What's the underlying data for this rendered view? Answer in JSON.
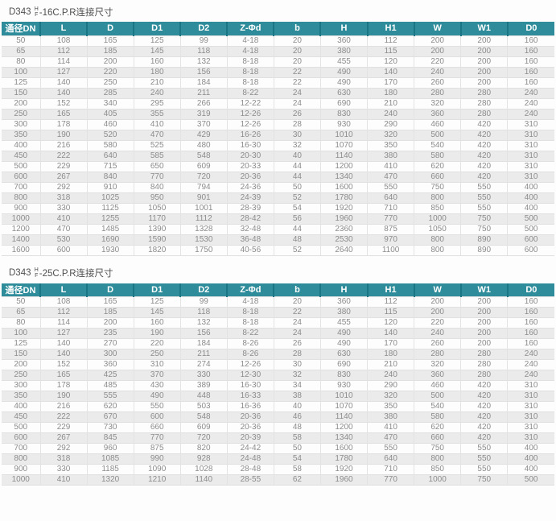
{
  "theme": {
    "header_bg": "#2e8c9b",
    "header_divider": "#1a7585",
    "header_text": "#ffffff",
    "row_alt_bg": "#ebebeb",
    "body_text": "#8c8c8c",
    "title_text": "#4f4f4f"
  },
  "tables": [
    {
      "title": {
        "prefix": "D343 ",
        "frac_top": "H",
        "frac_bottom": "F",
        "suffix": "-16C.P.R连接尺寸"
      },
      "columns": [
        "通径DN",
        "L",
        "D",
        "D1",
        "D2",
        "Z-Φd",
        "b",
        "H",
        "H1",
        "W",
        "W1",
        "D0"
      ],
      "rows": [
        [
          50,
          108,
          165,
          125,
          99,
          "4-18",
          20,
          360,
          112,
          200,
          200,
          160
        ],
        [
          65,
          112,
          185,
          145,
          118,
          "4-18",
          20,
          380,
          115,
          200,
          200,
          160
        ],
        [
          80,
          114,
          200,
          160,
          132,
          "8-18",
          20,
          455,
          120,
          220,
          200,
          160
        ],
        [
          100,
          127,
          220,
          180,
          156,
          "8-18",
          22,
          490,
          140,
          240,
          200,
          160
        ],
        [
          125,
          140,
          250,
          210,
          184,
          "8-18",
          22,
          490,
          170,
          260,
          200,
          160
        ],
        [
          150,
          140,
          285,
          240,
          211,
          "8-22",
          24,
          630,
          180,
          280,
          280,
          240
        ],
        [
          200,
          152,
          340,
          295,
          266,
          "12-22",
          24,
          690,
          210,
          320,
          280,
          240
        ],
        [
          250,
          165,
          405,
          355,
          319,
          "12-26",
          26,
          830,
          240,
          360,
          280,
          240
        ],
        [
          300,
          178,
          460,
          410,
          370,
          "12-26",
          28,
          930,
          290,
          460,
          420,
          310
        ],
        [
          350,
          190,
          520,
          470,
          429,
          "16-26",
          30,
          1010,
          320,
          500,
          420,
          310
        ],
        [
          400,
          216,
          580,
          525,
          480,
          "16-30",
          32,
          1070,
          350,
          540,
          420,
          310
        ],
        [
          450,
          222,
          640,
          585,
          548,
          "20-30",
          40,
          1140,
          380,
          580,
          420,
          310
        ],
        [
          500,
          229,
          715,
          650,
          609,
          "20-33",
          44,
          1200,
          410,
          620,
          420,
          310
        ],
        [
          600,
          267,
          840,
          770,
          720,
          "20-36",
          44,
          1340,
          470,
          660,
          420,
          310
        ],
        [
          700,
          292,
          910,
          840,
          794,
          "24-36",
          50,
          1600,
          550,
          750,
          550,
          400
        ],
        [
          800,
          318,
          1025,
          950,
          901,
          "24-39",
          52,
          1780,
          640,
          800,
          550,
          400
        ],
        [
          900,
          330,
          1125,
          1050,
          1001,
          "28-39",
          54,
          1920,
          710,
          850,
          550,
          400
        ],
        [
          1000,
          410,
          1255,
          1170,
          1112,
          "28-42",
          56,
          1960,
          770,
          1000,
          750,
          500
        ],
        [
          1200,
          470,
          1485,
          1390,
          1328,
          "32-48",
          44,
          2360,
          875,
          1050,
          750,
          500
        ],
        [
          1400,
          530,
          1690,
          1590,
          1530,
          "36-48",
          48,
          2530,
          970,
          800,
          890,
          600
        ],
        [
          1600,
          600,
          1930,
          1820,
          1750,
          "40-56",
          52,
          2640,
          1100,
          800,
          890,
          600
        ]
      ]
    },
    {
      "title": {
        "prefix": "D343 ",
        "frac_top": "H",
        "frac_bottom": "F",
        "suffix": "-25C.P.R连接尺寸"
      },
      "columns": [
        "通径DN",
        "L",
        "D",
        "D1",
        "D2",
        "Z-Φd",
        "b",
        "H",
        "H1",
        "W",
        "W1",
        "D0"
      ],
      "rows": [
        [
          50,
          108,
          165,
          125,
          99,
          "4-18",
          20,
          360,
          112,
          200,
          200,
          160
        ],
        [
          65,
          112,
          185,
          145,
          118,
          "8-18",
          22,
          380,
          115,
          200,
          200,
          160
        ],
        [
          80,
          114,
          200,
          160,
          132,
          "8-18",
          24,
          455,
          120,
          220,
          200,
          160
        ],
        [
          100,
          127,
          235,
          190,
          156,
          "8-22",
          24,
          490,
          140,
          240,
          200,
          160
        ],
        [
          125,
          140,
          270,
          220,
          184,
          "8-26",
          26,
          490,
          170,
          260,
          200,
          160
        ],
        [
          150,
          140,
          300,
          250,
          211,
          "8-26",
          28,
          630,
          180,
          280,
          280,
          240
        ],
        [
          200,
          152,
          360,
          310,
          274,
          "12-26",
          30,
          690,
          210,
          320,
          280,
          240
        ],
        [
          250,
          165,
          425,
          370,
          330,
          "12-30",
          32,
          830,
          240,
          360,
          280,
          240
        ],
        [
          300,
          178,
          485,
          430,
          389,
          "16-30",
          34,
          930,
          290,
          460,
          420,
          310
        ],
        [
          350,
          190,
          555,
          490,
          448,
          "16-33",
          38,
          1010,
          320,
          500,
          420,
          310
        ],
        [
          400,
          216,
          620,
          550,
          503,
          "16-36",
          40,
          1070,
          350,
          540,
          420,
          310
        ],
        [
          450,
          222,
          670,
          600,
          548,
          "20-36",
          46,
          1140,
          380,
          580,
          420,
          310
        ],
        [
          500,
          229,
          730,
          660,
          609,
          "20-36",
          48,
          1200,
          410,
          620,
          420,
          310
        ],
        [
          600,
          267,
          845,
          770,
          720,
          "20-39",
          58,
          1340,
          470,
          660,
          420,
          310
        ],
        [
          700,
          292,
          960,
          875,
          820,
          "24-42",
          50,
          1600,
          550,
          750,
          550,
          400
        ],
        [
          800,
          318,
          1085,
          990,
          928,
          "24-48",
          54,
          1780,
          640,
          800,
          550,
          400
        ],
        [
          900,
          330,
          1185,
          1090,
          1028,
          "28-48",
          58,
          1920,
          710,
          850,
          550,
          400
        ],
        [
          1000,
          410,
          1320,
          1210,
          1140,
          "28-55",
          62,
          1960,
          770,
          1000,
          750,
          500
        ]
      ]
    }
  ]
}
